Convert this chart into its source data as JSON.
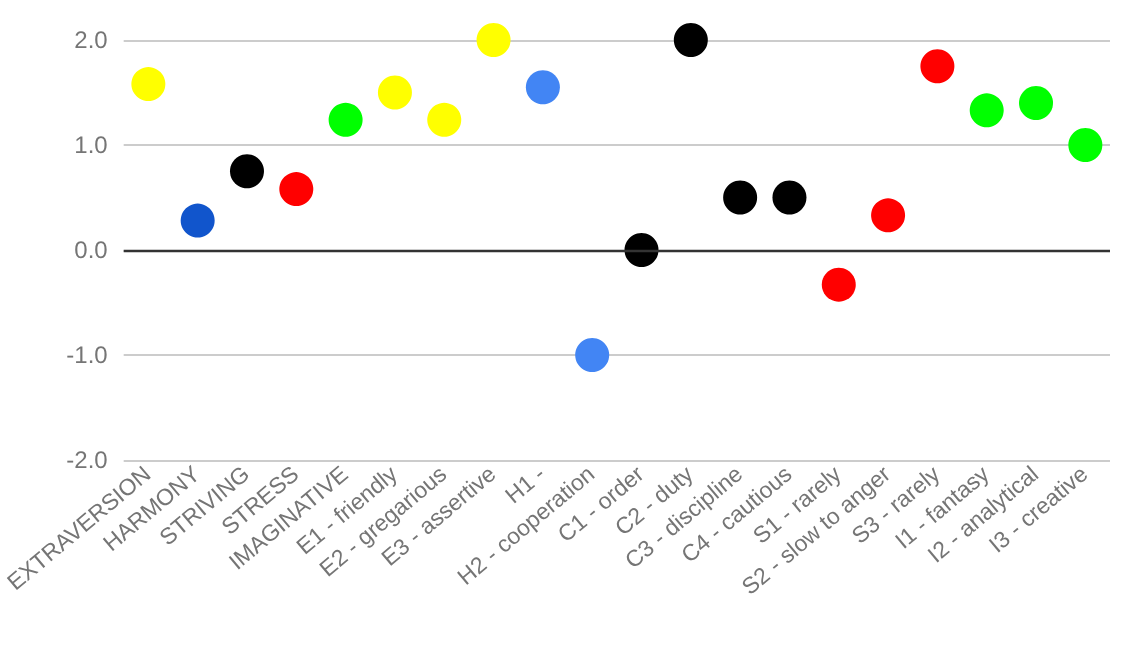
{
  "chart_data": {
    "type": "scatter",
    "categories": [
      "EXTRAVERSION",
      "HARMONY",
      "STRIVING",
      "STRESS",
      "IMAGINATIVE",
      "E1 - friendly",
      "E2 - gregarious",
      "E3 - assertive",
      "H1 -",
      "H2 - cooperation",
      "C1 - order",
      "C2 - duty",
      "C3 - discipline",
      "C4 - cautious",
      "S1 - rarely",
      "S2 - slow to anger",
      "S3 - rarely",
      "I1 - fantasy",
      "I2 - analytical",
      "I3 - creative"
    ],
    "values": [
      1.58,
      0.28,
      0.75,
      0.58,
      1.24,
      1.5,
      1.24,
      2.0,
      1.55,
      -1.0,
      0,
      2.0,
      0.5,
      0.5,
      -0.33,
      0.33,
      1.75,
      1.33,
      1.4,
      1.0
    ],
    "colors": [
      "#ffff00",
      "#1155cc",
      "#000000",
      "#ff0000",
      "#00ff00",
      "#ffff00",
      "#ffff00",
      "#ffff00",
      "#4285f4",
      "#4285f4",
      "#000000",
      "#000000",
      "#000000",
      "#000000",
      "#ff0000",
      "#ff0000",
      "#ff0000",
      "#00ff00",
      "#00ff00",
      "#00ff00"
    ],
    "ylim": [
      -2,
      2
    ],
    "yticks": [
      {
        "value": -2,
        "label": "-2.0"
      },
      {
        "value": -1,
        "label": "-1.0"
      },
      {
        "value": 0,
        "label": "0.0"
      },
      {
        "value": 1,
        "label": "1.0"
      },
      {
        "value": 2,
        "label": "2.0"
      }
    ],
    "grid": "y",
    "marker": "circle"
  }
}
